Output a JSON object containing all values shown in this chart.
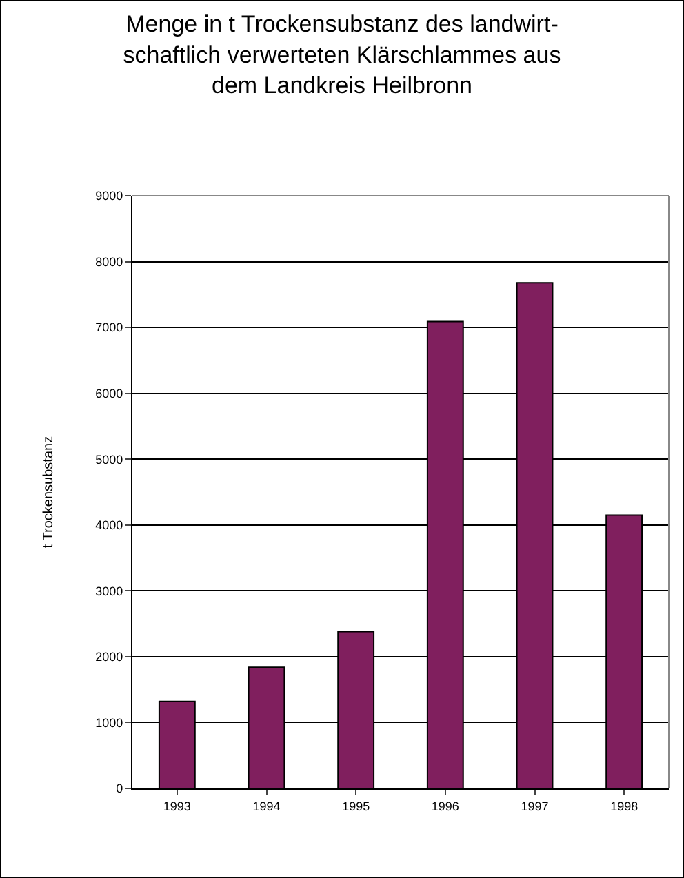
{
  "chart_data": {
    "type": "bar",
    "title": "Menge in t Trockensubstanz des landwirt-\nschaftlich verwerteten Klärschlammes aus\ndem Landkreis Heilbronn",
    "ylabel": "t Trockensubstanz",
    "categories": [
      "1993",
      "1994",
      "1995",
      "1996",
      "1997",
      "1998"
    ],
    "values": [
      1320,
      1840,
      2380,
      7090,
      7680,
      4150
    ],
    "color": "#801f5e",
    "ylim": [
      0,
      9000
    ],
    "yticks": [
      0,
      1000,
      2000,
      3000,
      4000,
      5000,
      6000,
      7000,
      8000,
      9000
    ],
    "grid": "y"
  }
}
